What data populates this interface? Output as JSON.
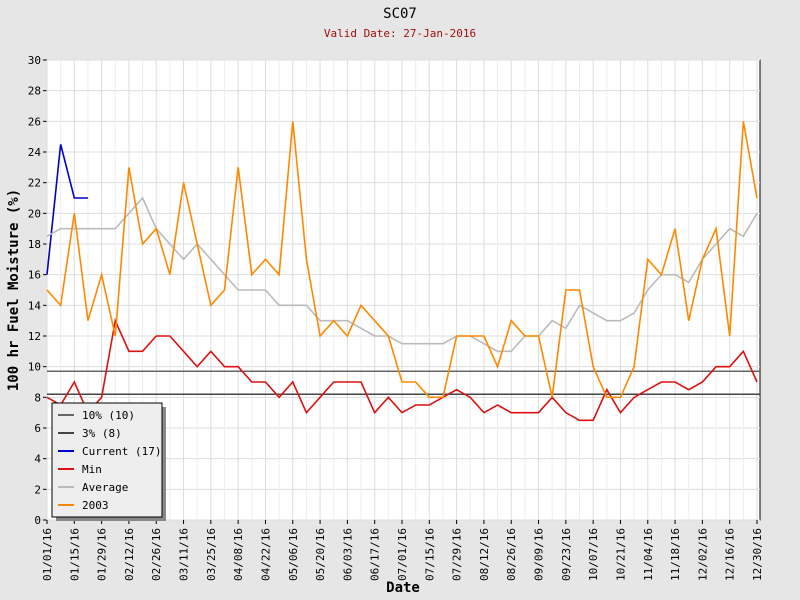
{
  "chart_data": {
    "type": "line",
    "title": "SC07",
    "subtitle": "Valid Date: 27-Jan-2016",
    "x_label": "Date",
    "y_label": "100 hr Fuel Moisture (%)",
    "x": [
      "01/01/16",
      "01/08/16",
      "01/15/16",
      "01/22/16",
      "01/29/16",
      "02/05/16",
      "02/12/16",
      "02/19/16",
      "02/26/16",
      "03/04/16",
      "03/11/16",
      "03/18/16",
      "03/25/16",
      "04/01/16",
      "04/08/16",
      "04/15/16",
      "04/22/16",
      "04/29/16",
      "05/06/16",
      "05/13/16",
      "05/20/16",
      "05/27/16",
      "06/03/16",
      "06/10/16",
      "06/17/16",
      "06/24/16",
      "07/01/16",
      "07/08/16",
      "07/15/16",
      "07/22/16",
      "07/29/16",
      "08/05/16",
      "08/12/16",
      "08/19/16",
      "08/26/16",
      "09/02/16",
      "09/09/16",
      "09/16/16",
      "09/23/16",
      "09/30/16",
      "10/07/16",
      "10/14/16",
      "10/21/16",
      "10/28/16",
      "11/04/16",
      "11/11/16",
      "11/18/16",
      "11/25/16",
      "12/02/16",
      "12/09/16",
      "12/16/16",
      "12/23/16",
      "12/30/16"
    ],
    "ylim": [
      0,
      30
    ],
    "yticks": [
      0,
      2,
      4,
      6,
      8,
      10,
      12,
      14,
      16,
      18,
      20,
      22,
      24,
      26,
      28,
      30
    ],
    "grid": true,
    "reference_lines": [
      {
        "name": "10% (10)",
        "value": 9.7,
        "color": "#666666"
      },
      {
        "name": "3% (8)",
        "value": 8.2,
        "color": "#444444"
      }
    ],
    "series": [
      {
        "name": "Current (17)",
        "color": "#0000cc",
        "values": [
          16,
          24.5,
          21,
          21,
          null,
          null,
          null,
          null,
          null,
          null,
          null,
          null,
          null,
          null,
          null,
          null,
          null,
          null,
          null,
          null,
          null,
          null,
          null,
          null,
          null,
          null,
          null,
          null,
          null,
          null,
          null,
          null,
          null,
          null,
          null,
          null,
          null,
          null,
          null,
          null,
          null,
          null,
          null,
          null,
          null,
          null,
          null,
          null,
          null,
          null,
          null,
          null,
          null
        ]
      },
      {
        "name": "Min",
        "color": "#dd1111",
        "values": [
          8,
          7.5,
          9,
          7,
          8,
          13,
          11,
          11,
          12,
          12,
          11,
          10,
          11,
          10,
          10,
          9,
          9,
          8,
          9,
          7,
          8,
          9,
          9,
          9,
          7,
          8,
          7,
          7.5,
          7.5,
          8,
          8.5,
          8,
          7,
          7.5,
          7,
          7,
          7,
          8,
          7,
          6.5,
          6.5,
          8.5,
          7,
          8,
          8.5,
          9,
          9,
          8.5,
          9,
          10,
          10,
          11,
          9
        ]
      },
      {
        "name": "Average",
        "color": "#bbbbbb",
        "values": [
          18.5,
          19,
          19,
          19,
          19,
          19,
          20,
          21,
          19,
          18,
          17,
          18,
          17,
          16,
          15,
          15,
          15,
          14,
          14,
          14,
          13,
          13,
          13,
          12.5,
          12,
          12,
          11.5,
          11.5,
          11.5,
          11.5,
          12,
          12,
          11.5,
          11,
          11,
          12,
          12,
          13,
          12.5,
          14,
          13.5,
          13,
          13,
          13.5,
          15,
          16,
          16,
          15.5,
          17,
          18,
          19,
          18.5,
          20
        ]
      },
      {
        "name": "2003",
        "color": "#ff8800",
        "values": [
          15,
          14,
          20,
          13,
          16,
          12,
          23,
          18,
          19,
          16,
          22,
          18,
          14,
          15,
          23,
          16,
          17,
          16,
          26,
          17,
          12,
          13,
          12,
          14,
          13,
          12,
          9,
          9,
          8,
          8,
          12,
          12,
          12,
          10,
          13,
          12,
          12,
          8,
          15,
          15,
          10,
          8,
          8,
          10,
          17,
          16,
          19,
          13,
          17,
          19,
          12,
          26,
          21
        ]
      }
    ]
  }
}
